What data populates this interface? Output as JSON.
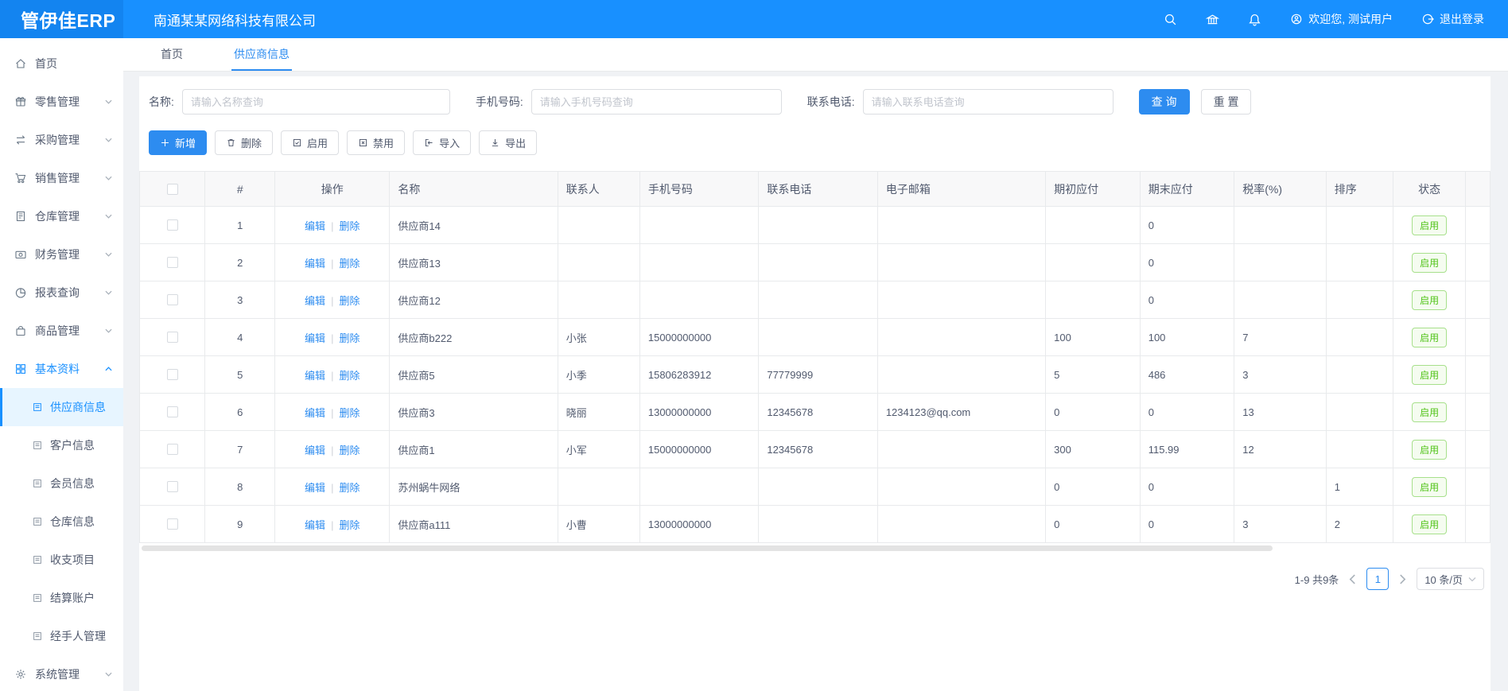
{
  "header": {
    "logo": "管伊佳ERP",
    "company": "南通某某网络科技有限公司",
    "welcome": "欢迎您, 测试用户",
    "logout": "退出登录"
  },
  "sidebar": {
    "main_items": [
      {
        "label": "首页",
        "icon": "home",
        "chevron": ""
      },
      {
        "label": "零售管理",
        "icon": "retail",
        "chevron": "down"
      },
      {
        "label": "采购管理",
        "icon": "purchase",
        "chevron": "down"
      },
      {
        "label": "销售管理",
        "icon": "sales",
        "chevron": "down"
      },
      {
        "label": "仓库管理",
        "icon": "warehouse",
        "chevron": "down"
      },
      {
        "label": "财务管理",
        "icon": "finance",
        "chevron": "down"
      },
      {
        "label": "报表查询",
        "icon": "report",
        "chevron": "down"
      },
      {
        "label": "商品管理",
        "icon": "goods",
        "chevron": "down"
      },
      {
        "label": "基本资料",
        "icon": "basic",
        "chevron": "up",
        "active": true
      }
    ],
    "sub_items": [
      {
        "label": "供应商信息",
        "active": true
      },
      {
        "label": "客户信息"
      },
      {
        "label": "会员信息"
      },
      {
        "label": "仓库信息"
      },
      {
        "label": "收支项目"
      },
      {
        "label": "结算账户"
      },
      {
        "label": "经手人管理"
      }
    ],
    "bottom_items": [
      {
        "label": "系统管理",
        "icon": "gear",
        "chevron": "down"
      }
    ]
  },
  "tabs": [
    {
      "label": "首页",
      "active": false
    },
    {
      "label": "供应商信息",
      "active": true
    }
  ],
  "search": {
    "fields": [
      {
        "label": "名称:",
        "placeholder": "请输入名称查询"
      },
      {
        "label": "手机号码:",
        "placeholder": "请输入手机号码查询"
      },
      {
        "label": "联系电话:",
        "placeholder": "请输入联系电话查询"
      }
    ],
    "query_label": "查 询",
    "reset_label": "重 置"
  },
  "toolbar": {
    "add": "新增",
    "delete": "删除",
    "enable": "启用",
    "disable": "禁用",
    "import": "导入",
    "export": "导出"
  },
  "table": {
    "headers": [
      "#",
      "操作",
      "名称",
      "联系人",
      "手机号码",
      "联系电话",
      "电子邮箱",
      "期初应付",
      "期末应付",
      "税率(%)",
      "排序",
      "状态"
    ],
    "edit_label": "编辑",
    "delete_label": "删除",
    "ops_separator": "|",
    "rows": [
      {
        "index": "1",
        "name": "供应商14",
        "contact": "",
        "mobile": "",
        "phone": "",
        "email": "",
        "opening": "",
        "closing": "0",
        "tax": "",
        "sort": "",
        "status": "启用"
      },
      {
        "index": "2",
        "name": "供应商13",
        "contact": "",
        "mobile": "",
        "phone": "",
        "email": "",
        "opening": "",
        "closing": "0",
        "tax": "",
        "sort": "",
        "status": "启用"
      },
      {
        "index": "3",
        "name": "供应商12",
        "contact": "",
        "mobile": "",
        "phone": "",
        "email": "",
        "opening": "",
        "closing": "0",
        "tax": "",
        "sort": "",
        "status": "启用"
      },
      {
        "index": "4",
        "name": "供应商b222",
        "contact": "小张",
        "mobile": "15000000000",
        "phone": "",
        "email": "",
        "opening": "100",
        "closing": "100",
        "tax": "7",
        "sort": "",
        "status": "启用"
      },
      {
        "index": "5",
        "name": "供应商5",
        "contact": "小季",
        "mobile": "15806283912",
        "phone": "77779999",
        "email": "",
        "opening": "5",
        "closing": "486",
        "tax": "3",
        "sort": "",
        "status": "启用"
      },
      {
        "index": "6",
        "name": "供应商3",
        "contact": "晓丽",
        "mobile": "13000000000",
        "phone": "12345678",
        "email": "1234123@qq.com",
        "opening": "0",
        "closing": "0",
        "tax": "13",
        "sort": "",
        "status": "启用"
      },
      {
        "index": "7",
        "name": "供应商1",
        "contact": "小军",
        "mobile": "15000000000",
        "phone": "12345678",
        "email": "",
        "opening": "300",
        "closing": "115.99",
        "tax": "12",
        "sort": "",
        "status": "启用"
      },
      {
        "index": "8",
        "name": "苏州蜗牛网络",
        "contact": "",
        "mobile": "",
        "phone": "",
        "email": "",
        "opening": "0",
        "closing": "0",
        "tax": "",
        "sort": "1",
        "status": "启用"
      },
      {
        "index": "9",
        "name": "供应商a111",
        "contact": "小曹",
        "mobile": "13000000000",
        "phone": "",
        "email": "",
        "opening": "0",
        "closing": "0",
        "tax": "3",
        "sort": "2",
        "status": "启用"
      }
    ]
  },
  "pagination": {
    "total": "1-9 共9条",
    "page": "1",
    "page_size": "10 条/页"
  },
  "colors": {
    "topbar": "#1890ff",
    "accent": "#2d8cf0",
    "status_green": "#52c41a",
    "page_bg": "#f0f2f5"
  }
}
